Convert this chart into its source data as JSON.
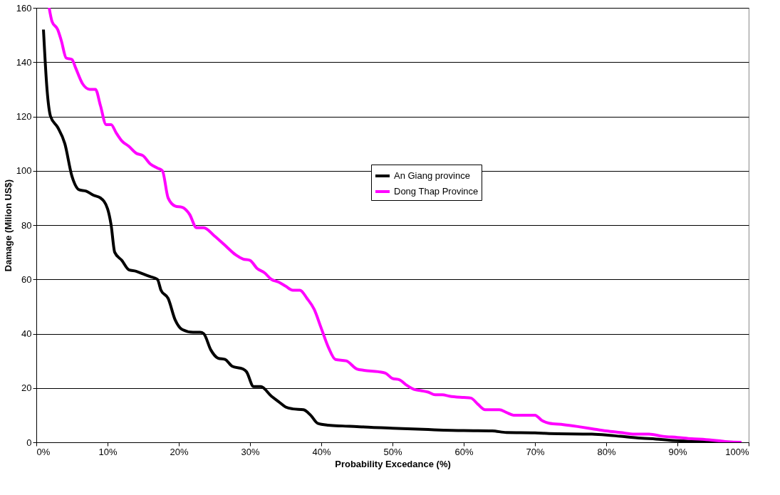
{
  "chart_data": {
    "type": "line",
    "xlabel": "Probability Excedance (%)",
    "ylabel": "Damage (Milion US$)",
    "xlim": [
      0,
      100
    ],
    "ylim": [
      0,
      160
    ],
    "xticks": [
      {
        "value": 0,
        "label": "0%"
      },
      {
        "value": 10,
        "label": "10%"
      },
      {
        "value": 20,
        "label": "20%"
      },
      {
        "value": 30,
        "label": "30%"
      },
      {
        "value": 40,
        "label": "40%"
      },
      {
        "value": 50,
        "label": "50%"
      },
      {
        "value": 60,
        "label": "60%"
      },
      {
        "value": 70,
        "label": "70%"
      },
      {
        "value": 80,
        "label": "80%"
      },
      {
        "value": 90,
        "label": "90%"
      },
      {
        "value": 100,
        "label": "100%"
      }
    ],
    "yticks": [
      0,
      20,
      40,
      60,
      80,
      100,
      120,
      140,
      160
    ],
    "grid": "y",
    "legend": "center",
    "marker": "none",
    "line_style": "solid",
    "series": [
      {
        "name": "An Giang province",
        "color": "#000000",
        "x": [
          1,
          1.5,
          2,
          3,
          4,
          5,
          6,
          7,
          8,
          9,
          10,
          10.5,
          11,
          12,
          13,
          14,
          15,
          16,
          17,
          17.5,
          18.5,
          19.5,
          20.5,
          22,
          23,
          23.5,
          24.5,
          25.5,
          26.5,
          27.5,
          29,
          29.5,
          30.5,
          31.5,
          33,
          34,
          35,
          36,
          37.5,
          38.5,
          39.5,
          41,
          43,
          45,
          47,
          50,
          55,
          60,
          64,
          66,
          70,
          72,
          78,
          80,
          82,
          85,
          87,
          89,
          92,
          95,
          98
        ],
        "values": [
          152,
          130,
          120,
          116,
          110,
          98,
          93,
          92.5,
          91,
          90,
          86,
          80,
          70,
          67,
          63.5,
          63,
          62,
          61,
          60,
          56,
          53,
          45,
          41.5,
          40.5,
          40.5,
          40,
          34,
          31,
          30.5,
          28,
          27,
          26,
          20.5,
          20.5,
          17,
          15,
          13,
          12.3,
          12,
          10,
          7,
          6.3,
          6,
          5.8,
          5.5,
          5.2,
          4.7,
          4.3,
          4.2,
          3.6,
          3.5,
          3.2,
          3,
          2.7,
          2.2,
          1.5,
          1.2,
          0.7,
          0.4,
          0.1,
          0
        ]
      },
      {
        "name": "Dong Thap Province",
        "color": "#ff00ff",
        "x": [
          1.8,
          2.2,
          3,
          3.5,
          4.2,
          5,
          5.5,
          6.5,
          7.5,
          8.3,
          9,
          9.8,
          10.5,
          11.2,
          12,
          13,
          14,
          15,
          16,
          17,
          17.7,
          18.5,
          19.5,
          20.5,
          21.5,
          22.5,
          23.5,
          25,
          26.5,
          28,
          29,
          30,
          31,
          32,
          33,
          34,
          35,
          36,
          37,
          38,
          39,
          40,
          41,
          42,
          43.5,
          45,
          46,
          48,
          49,
          50,
          51,
          52,
          53,
          54,
          55,
          56,
          57,
          58,
          60,
          61,
          62,
          63,
          65,
          66,
          67,
          70,
          71,
          72,
          74,
          76,
          78,
          80,
          82,
          84,
          86,
          88,
          90,
          92,
          94,
          96,
          97,
          99
        ],
        "values": [
          160,
          155,
          152,
          148,
          141.5,
          141,
          138,
          132,
          130,
          130,
          124,
          117,
          117,
          114,
          111,
          109,
          106.5,
          105.5,
          102.5,
          101,
          100,
          90,
          87,
          86.5,
          84,
          79,
          79,
          76,
          72.5,
          69,
          67.5,
          67,
          64,
          62.5,
          60,
          59,
          57.5,
          56,
          56,
          53,
          49,
          42,
          35,
          30.5,
          30,
          27,
          26.5,
          26,
          25.5,
          23.5,
          23,
          21,
          19.5,
          19,
          18.5,
          17.5,
          17.5,
          17,
          16.5,
          16.3,
          14,
          12,
          12,
          11,
          10,
          10,
          8,
          7,
          6.5,
          5.8,
          5,
          4.2,
          3.6,
          3,
          3,
          2.2,
          1.8,
          1.3,
          1,
          0.5,
          0.2,
          0
        ]
      }
    ]
  }
}
